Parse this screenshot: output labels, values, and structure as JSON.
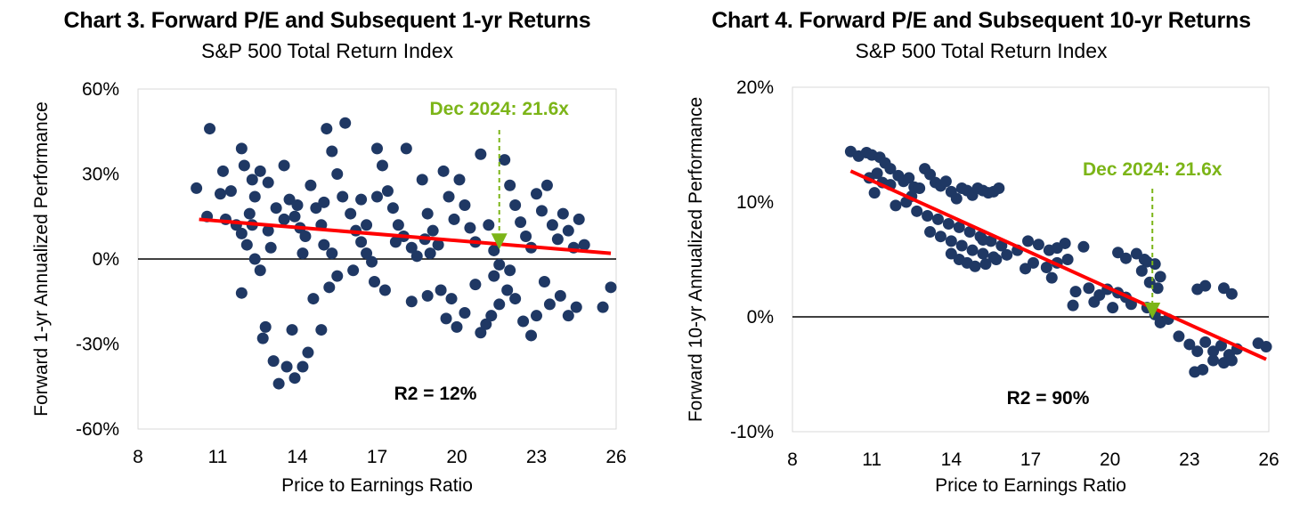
{
  "colors": {
    "points": "#1f3864",
    "trend": "#ff0000",
    "annotation": "#7cb518",
    "zero_line": "#000000",
    "frame": "#d9d9d9"
  },
  "chart_data": [
    {
      "type": "scatter",
      "title": "Chart 3. Forward P/E and Subsequent 1-yr Returns",
      "subtitle": "S&P 500 Total Return Index",
      "xlabel": "Price to Earnings  Ratio",
      "ylabel": "Forward  1-yr Annualized  Performance",
      "xlim": [
        8,
        26
      ],
      "ylim": [
        -0.6,
        0.6
      ],
      "x_ticks": [
        "8",
        "11",
        "14",
        "17",
        "20",
        "23",
        "26"
      ],
      "y_ticks": [
        "60%",
        "30%",
        "0%",
        "-30%",
        "-60%"
      ],
      "annotation": "Dec 2024: 21.6x",
      "annotation_x": 21.6,
      "r2_label": "R2 = 12%",
      "trend": [
        [
          10.3,
          0.14
        ],
        [
          25.8,
          0.02
        ]
      ],
      "points": [
        [
          10.7,
          0.46
        ],
        [
          10.2,
          0.25
        ],
        [
          10.6,
          0.15
        ],
        [
          11.1,
          0.23
        ],
        [
          11.2,
          0.31
        ],
        [
          11.5,
          0.24
        ],
        [
          11.9,
          0.39
        ],
        [
          12.0,
          0.33
        ],
        [
          12.3,
          0.28
        ],
        [
          12.4,
          0.22
        ],
        [
          12.6,
          0.31
        ],
        [
          12.2,
          0.16
        ],
        [
          11.9,
          0.09
        ],
        [
          11.7,
          0.12
        ],
        [
          12.1,
          0.05
        ],
        [
          12.4,
          0.0
        ],
        [
          12.6,
          -0.04
        ],
        [
          12.8,
          -0.24
        ],
        [
          12.7,
          -0.28
        ],
        [
          11.9,
          -0.12
        ],
        [
          12.9,
          0.1
        ],
        [
          13.0,
          0.04
        ],
        [
          13.2,
          0.18
        ],
        [
          13.5,
          0.33
        ],
        [
          13.7,
          0.21
        ],
        [
          13.9,
          0.15
        ],
        [
          14.1,
          0.11
        ],
        [
          14.3,
          0.08
        ],
        [
          14.2,
          0.02
        ],
        [
          14.5,
          0.26
        ],
        [
          14.7,
          0.18
        ],
        [
          14.9,
          0.12
        ],
        [
          15.0,
          0.05
        ],
        [
          15.1,
          0.46
        ],
        [
          15.3,
          0.38
        ],
        [
          15.5,
          0.3
        ],
        [
          15.7,
          0.22
        ],
        [
          15.8,
          0.48
        ],
        [
          16.0,
          0.16
        ],
        [
          16.2,
          0.1
        ],
        [
          16.4,
          0.06
        ],
        [
          16.6,
          0.02
        ],
        [
          16.8,
          -0.01
        ],
        [
          17.0,
          0.39
        ],
        [
          17.2,
          0.33
        ],
        [
          17.4,
          0.24
        ],
        [
          17.6,
          0.18
        ],
        [
          17.8,
          0.12
        ],
        [
          18.0,
          0.08
        ],
        [
          18.1,
          0.39
        ],
        [
          18.3,
          0.04
        ],
        [
          18.5,
          0.01
        ],
        [
          18.7,
          0.28
        ],
        [
          18.9,
          0.16
        ],
        [
          19.1,
          0.1
        ],
        [
          19.3,
          0.05
        ],
        [
          19.5,
          0.31
        ],
        [
          19.7,
          0.22
        ],
        [
          19.9,
          0.14
        ],
        [
          20.1,
          0.28
        ],
        [
          20.3,
          0.19
        ],
        [
          20.5,
          0.11
        ],
        [
          20.7,
          0.06
        ],
        [
          20.9,
          0.37
        ],
        [
          21.2,
          0.12
        ],
        [
          21.4,
          0.03
        ],
        [
          21.6,
          -0.02
        ],
        [
          21.8,
          0.35
        ],
        [
          22.0,
          0.26
        ],
        [
          22.2,
          0.19
        ],
        [
          22.4,
          0.13
        ],
        [
          22.6,
          0.08
        ],
        [
          22.8,
          0.04
        ],
        [
          23.0,
          0.23
        ],
        [
          23.2,
          0.17
        ],
        [
          23.4,
          0.26
        ],
        [
          23.6,
          0.12
        ],
        [
          23.8,
          0.07
        ],
        [
          24.0,
          0.16
        ],
        [
          24.2,
          0.1
        ],
        [
          24.4,
          0.04
        ],
        [
          24.6,
          0.14
        ],
        [
          24.8,
          0.05
        ],
        [
          13.1,
          -0.36
        ],
        [
          13.3,
          -0.44
        ],
        [
          13.6,
          -0.38
        ],
        [
          13.9,
          -0.42
        ],
        [
          14.2,
          -0.38
        ],
        [
          14.4,
          -0.33
        ],
        [
          13.8,
          -0.25
        ],
        [
          14.9,
          -0.25
        ],
        [
          15.2,
          -0.1
        ],
        [
          15.5,
          -0.06
        ],
        [
          14.6,
          -0.14
        ],
        [
          16.1,
          -0.04
        ],
        [
          16.9,
          -0.08
        ],
        [
          17.3,
          -0.11
        ],
        [
          18.3,
          -0.15
        ],
        [
          18.9,
          -0.13
        ],
        [
          19.4,
          -0.11
        ],
        [
          19.8,
          -0.14
        ],
        [
          19.6,
          -0.21
        ],
        [
          20.0,
          -0.24
        ],
        [
          20.3,
          -0.19
        ],
        [
          20.7,
          -0.09
        ],
        [
          20.9,
          -0.26
        ],
        [
          21.3,
          -0.2
        ],
        [
          21.6,
          -0.16
        ],
        [
          21.9,
          -0.11
        ],
        [
          22.2,
          -0.14
        ],
        [
          22.5,
          -0.22
        ],
        [
          22.8,
          -0.27
        ],
        [
          23.0,
          -0.2
        ],
        [
          23.3,
          -0.08
        ],
        [
          23.5,
          -0.16
        ],
        [
          23.9,
          -0.13
        ],
        [
          24.2,
          -0.2
        ],
        [
          24.5,
          -0.17
        ],
        [
          25.5,
          -0.17
        ],
        [
          25.8,
          -0.1
        ],
        [
          21.1,
          -0.23
        ],
        [
          21.4,
          -0.06
        ],
        [
          22.0,
          -0.04
        ],
        [
          16.4,
          0.21
        ],
        [
          17.0,
          0.22
        ],
        [
          15.0,
          0.2
        ],
        [
          14.0,
          0.19
        ],
        [
          13.5,
          0.14
        ],
        [
          12.9,
          0.27
        ],
        [
          12.3,
          0.12
        ],
        [
          11.3,
          0.14
        ],
        [
          15.3,
          0.02
        ],
        [
          16.6,
          0.12
        ],
        [
          17.7,
          0.06
        ],
        [
          19.0,
          0.02
        ],
        [
          18.8,
          0.07
        ]
      ]
    },
    {
      "type": "scatter",
      "title": "Chart 4. Forward P/E and Subsequent 10-yr Returns",
      "subtitle": "S&P 500 Total Return Index",
      "xlabel": "Price to Earnings  Ratio",
      "ylabel": "Forward  10-yr Annualized  Performance",
      "xlim": [
        8,
        26
      ],
      "ylim": [
        -0.1,
        0.2
      ],
      "x_ticks": [
        "8",
        "11",
        "14",
        "17",
        "20",
        "23",
        "26"
      ],
      "y_ticks": [
        "20%",
        "10%",
        "0%",
        "-10%"
      ],
      "annotation": "Dec 2024: 21.6x",
      "annotation_x": 21.6,
      "r2_label": "R2 = 90%",
      "trend": [
        [
          10.2,
          0.127
        ],
        [
          25.9,
          -0.037
        ]
      ],
      "points": [
        [
          10.2,
          0.144
        ],
        [
          10.5,
          0.14
        ],
        [
          10.8,
          0.143
        ],
        [
          11.0,
          0.141
        ],
        [
          11.3,
          0.139
        ],
        [
          11.5,
          0.134
        ],
        [
          11.2,
          0.125
        ],
        [
          10.9,
          0.121
        ],
        [
          11.1,
          0.108
        ],
        [
          11.4,
          0.117
        ],
        [
          11.7,
          0.129
        ],
        [
          12.0,
          0.123
        ],
        [
          12.2,
          0.118
        ],
        [
          12.4,
          0.121
        ],
        [
          12.6,
          0.113
        ],
        [
          12.8,
          0.112
        ],
        [
          13.0,
          0.129
        ],
        [
          13.2,
          0.124
        ],
        [
          13.4,
          0.117
        ],
        [
          13.6,
          0.114
        ],
        [
          13.8,
          0.118
        ],
        [
          14.0,
          0.109
        ],
        [
          14.2,
          0.103
        ],
        [
          14.4,
          0.112
        ],
        [
          14.6,
          0.11
        ],
        [
          14.8,
          0.106
        ],
        [
          15.0,
          0.112
        ],
        [
          15.2,
          0.11
        ],
        [
          15.4,
          0.108
        ],
        [
          15.6,
          0.109
        ],
        [
          15.8,
          0.112
        ],
        [
          11.9,
          0.097
        ],
        [
          12.3,
          0.1
        ],
        [
          12.7,
          0.092
        ],
        [
          13.1,
          0.088
        ],
        [
          13.5,
          0.085
        ],
        [
          13.9,
          0.081
        ],
        [
          14.3,
          0.078
        ],
        [
          14.7,
          0.074
        ],
        [
          15.1,
          0.07
        ],
        [
          15.5,
          0.066
        ],
        [
          15.9,
          0.062
        ],
        [
          13.2,
          0.074
        ],
        [
          13.6,
          0.07
        ],
        [
          14.0,
          0.066
        ],
        [
          14.4,
          0.062
        ],
        [
          14.8,
          0.058
        ],
        [
          15.2,
          0.055
        ],
        [
          15.6,
          0.052
        ],
        [
          14.0,
          0.055
        ],
        [
          14.3,
          0.05
        ],
        [
          14.6,
          0.047
        ],
        [
          14.9,
          0.044
        ],
        [
          15.3,
          0.046
        ],
        [
          15.7,
          0.05
        ],
        [
          16.1,
          0.054
        ],
        [
          16.5,
          0.058
        ],
        [
          16.9,
          0.066
        ],
        [
          17.3,
          0.063
        ],
        [
          17.7,
          0.058
        ],
        [
          18.0,
          0.06
        ],
        [
          18.3,
          0.064
        ],
        [
          17.1,
          0.047
        ],
        [
          17.6,
          0.043
        ],
        [
          18.0,
          0.047
        ],
        [
          18.4,
          0.05
        ],
        [
          17.8,
          0.034
        ],
        [
          19.0,
          0.061
        ],
        [
          18.7,
          0.022
        ],
        [
          19.2,
          0.025
        ],
        [
          19.6,
          0.019
        ],
        [
          19.9,
          0.024
        ],
        [
          20.3,
          0.021
        ],
        [
          20.6,
          0.017
        ],
        [
          20.8,
          0.011
        ],
        [
          20.1,
          0.008
        ],
        [
          19.4,
          0.013
        ],
        [
          18.6,
          0.01
        ],
        [
          20.6,
          0.051
        ],
        [
          20.3,
          0.056
        ],
        [
          21.0,
          0.055
        ],
        [
          21.4,
          0.048
        ],
        [
          21.7,
          0.046
        ],
        [
          21.9,
          0.035
        ],
        [
          21.2,
          0.04
        ],
        [
          21.5,
          0.03
        ],
        [
          21.8,
          0.025
        ],
        [
          21.4,
          0.008
        ],
        [
          21.7,
          0.002
        ],
        [
          21.9,
          -0.005
        ],
        [
          22.2,
          -0.002
        ],
        [
          22.6,
          -0.017
        ],
        [
          23.0,
          -0.024
        ],
        [
          23.3,
          -0.03
        ],
        [
          23.6,
          -0.022
        ],
        [
          23.9,
          -0.03
        ],
        [
          24.2,
          -0.025
        ],
        [
          24.5,
          -0.033
        ],
        [
          24.8,
          -0.028
        ],
        [
          23.2,
          -0.048
        ],
        [
          23.5,
          -0.046
        ],
        [
          23.9,
          -0.038
        ],
        [
          24.3,
          -0.04
        ],
        [
          24.6,
          -0.038
        ],
        [
          23.3,
          0.024
        ],
        [
          23.6,
          0.027
        ],
        [
          24.3,
          0.025
        ],
        [
          24.6,
          0.02
        ],
        [
          25.6,
          -0.023
        ],
        [
          25.9,
          -0.026
        ],
        [
          21.3,
          0.05
        ],
        [
          16.8,
          0.042
        ],
        [
          15.2,
          0.067
        ],
        [
          12.5,
          0.105
        ],
        [
          11.7,
          0.115
        ]
      ]
    }
  ]
}
